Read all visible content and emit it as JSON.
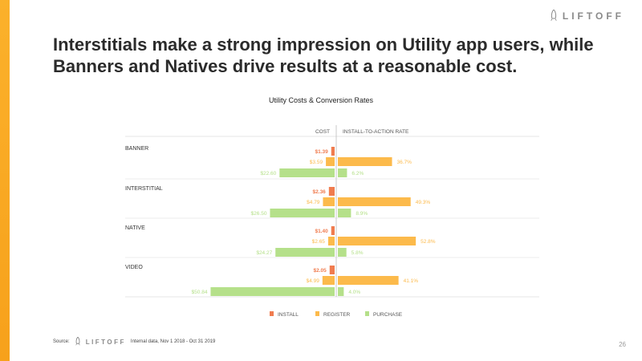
{
  "brand": {
    "name": "LIFTOFF"
  },
  "headline": "Interstitials make a strong impression on Utility app users, while Banners and Natives drive results at a reasonable cost.",
  "chart_data": {
    "type": "bar",
    "title": "Utility Costs & Conversion Rates",
    "left_header": "COST",
    "right_header": "INSTALL-TO-ACTION RATE",
    "categories": [
      "BANNER",
      "INTERSTITIAL",
      "NATIVE",
      "VIDEO"
    ],
    "series": [
      {
        "name": "INSTALL",
        "color": "#f07c4f",
        "cost": [
          1.39,
          2.36,
          1.4,
          2.05
        ],
        "cost_labels": [
          "$1.39",
          "$2.36",
          "$1.40",
          "$2.05"
        ],
        "rate": [
          null,
          null,
          null,
          null
        ],
        "rate_labels": [
          "",
          "",
          "",
          ""
        ]
      },
      {
        "name": "REGISTER",
        "color": "#fcba4b",
        "cost": [
          3.59,
          4.79,
          2.65,
          4.99
        ],
        "cost_labels": [
          "$3.59",
          "$4.79",
          "$2.65",
          "$4.99"
        ],
        "rate": [
          36.7,
          49.3,
          52.8,
          41.1
        ],
        "rate_labels": [
          "36.7%",
          "49.3%",
          "52.8%",
          "41.1%"
        ]
      },
      {
        "name": "PURCHASE",
        "color": "#b5e08a",
        "cost": [
          22.6,
          26.5,
          24.27,
          50.84
        ],
        "cost_labels": [
          "$22.60",
          "$26.50",
          "$24.27",
          "$50.84"
        ],
        "rate": [
          6.2,
          8.9,
          5.8,
          4.0
        ],
        "rate_labels": [
          "6.2%",
          "8.9%",
          "5.8%",
          "4.0%"
        ]
      }
    ],
    "legend_position": "bottom"
  },
  "footer": {
    "source_label": "Source:",
    "brand": "LIFTOFF",
    "note": "Internal data, Nov 1 2018 - Oct 31 2019"
  },
  "page_number": "26"
}
